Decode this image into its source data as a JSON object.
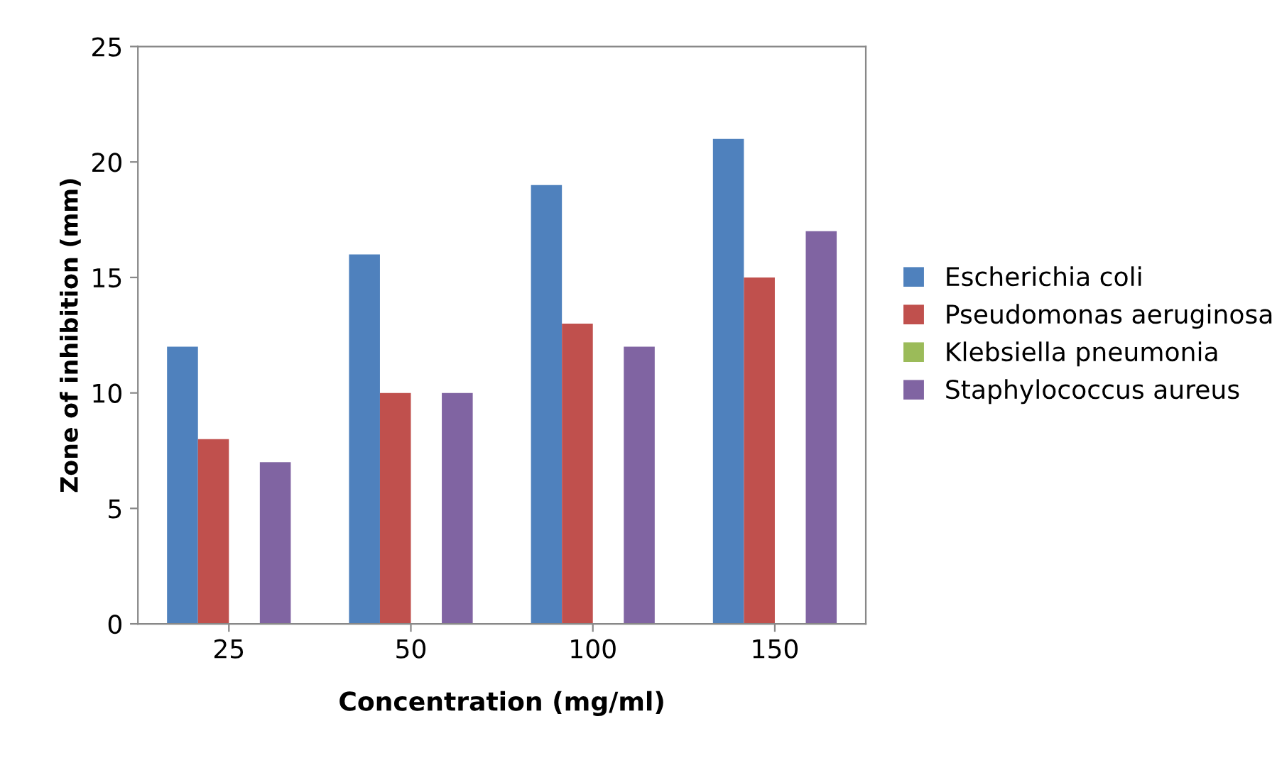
{
  "chart_data": {
    "type": "bar",
    "xlabel": "Concentration (mg/ml)",
    "ylabel": "Zone of inhibition (mm)",
    "categories": [
      "25",
      "50",
      "100",
      "150"
    ],
    "series": [
      {
        "name": "Escherichia coli",
        "color": "#4f81bd",
        "values": [
          12,
          16,
          19,
          21
        ]
      },
      {
        "name": "Pseudomonas aeruginosa",
        "color": "#c0504d",
        "values": [
          8,
          10,
          13,
          15
        ]
      },
      {
        "name": "Klebsiella pneumonia",
        "color": "#9bbb59",
        "values": [
          0,
          0,
          0,
          0
        ]
      },
      {
        "name": "Staphylococcus aureus",
        "color": "#8064a2",
        "values": [
          7,
          10,
          12,
          17
        ]
      }
    ],
    "ylim": [
      0,
      25
    ],
    "yticks": [
      0,
      5,
      10,
      15,
      20,
      25
    ],
    "grid": false,
    "legend": "right"
  }
}
